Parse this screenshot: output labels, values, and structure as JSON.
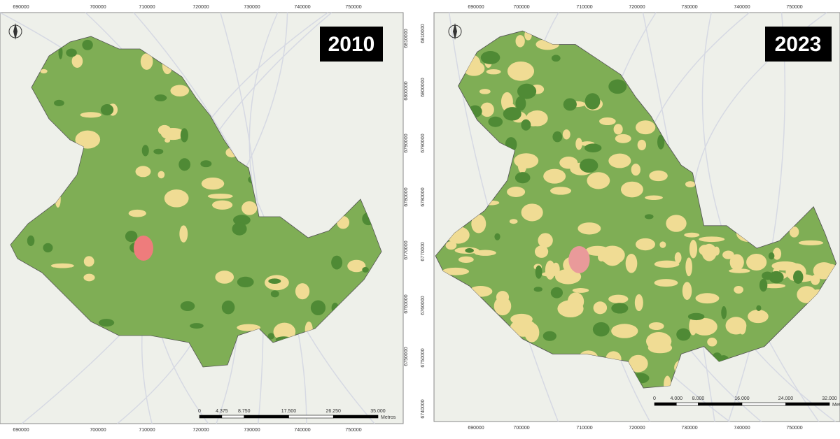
{
  "panels": [
    {
      "year": "2010",
      "x_ticks": [
        "690000",
        "700000",
        "710000",
        "720000",
        "730000",
        "740000",
        "750000"
      ],
      "y_ticks": [
        "6810000",
        "6800000",
        "6790000",
        "6780000",
        "6770000",
        "6760000",
        "6750000"
      ],
      "scale": {
        "labels": [
          "0",
          "4.375",
          "8.750",
          "17.500",
          "26.250",
          "35.000"
        ],
        "unit": "Metros"
      }
    },
    {
      "year": "2023",
      "x_ticks": [
        "690000",
        "700000",
        "710000",
        "720000",
        "730000",
        "740000",
        "750000"
      ],
      "y_ticks": [
        "6810000",
        "6800000",
        "6790000",
        "6780000",
        "6770000",
        "6760000",
        "6750000",
        "6740000"
      ],
      "scale": {
        "labels": [
          "0",
          "4.000",
          "8.000",
          "16.000",
          "24.000",
          "32.000"
        ],
        "unit": "Metros"
      }
    }
  ]
}
